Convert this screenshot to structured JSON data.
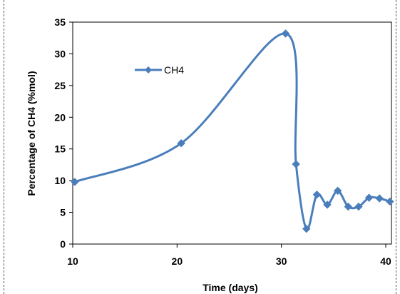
{
  "chart_data": {
    "type": "line",
    "xlabel": "Time (days)",
    "ylabel": "Percentage of CH4 (%mol)",
    "xlim": [
      10,
      40
    ],
    "ylim": [
      0,
      35
    ],
    "xticks": [
      "10",
      "20",
      "30",
      "40"
    ],
    "yticks": [
      "0",
      "5",
      "10",
      "15",
      "20",
      "25",
      "30",
      "35"
    ],
    "grid": false,
    "legend_position": "upper-left inside plot",
    "series": [
      {
        "name": "CH4",
        "color": "#4a7ebb",
        "marker": "diamond",
        "smooth": true,
        "x": [
          10.2,
          20.4,
          30.4,
          31.4,
          32.4,
          33.4,
          34.4,
          35.4,
          36.4,
          37.4,
          38.4,
          39.4,
          40.4
        ],
        "y": [
          9.8,
          15.9,
          33.2,
          12.6,
          2.4,
          7.8,
          6.2,
          8.4,
          5.9,
          5.9,
          7.3,
          7.2,
          6.7
        ]
      }
    ]
  }
}
